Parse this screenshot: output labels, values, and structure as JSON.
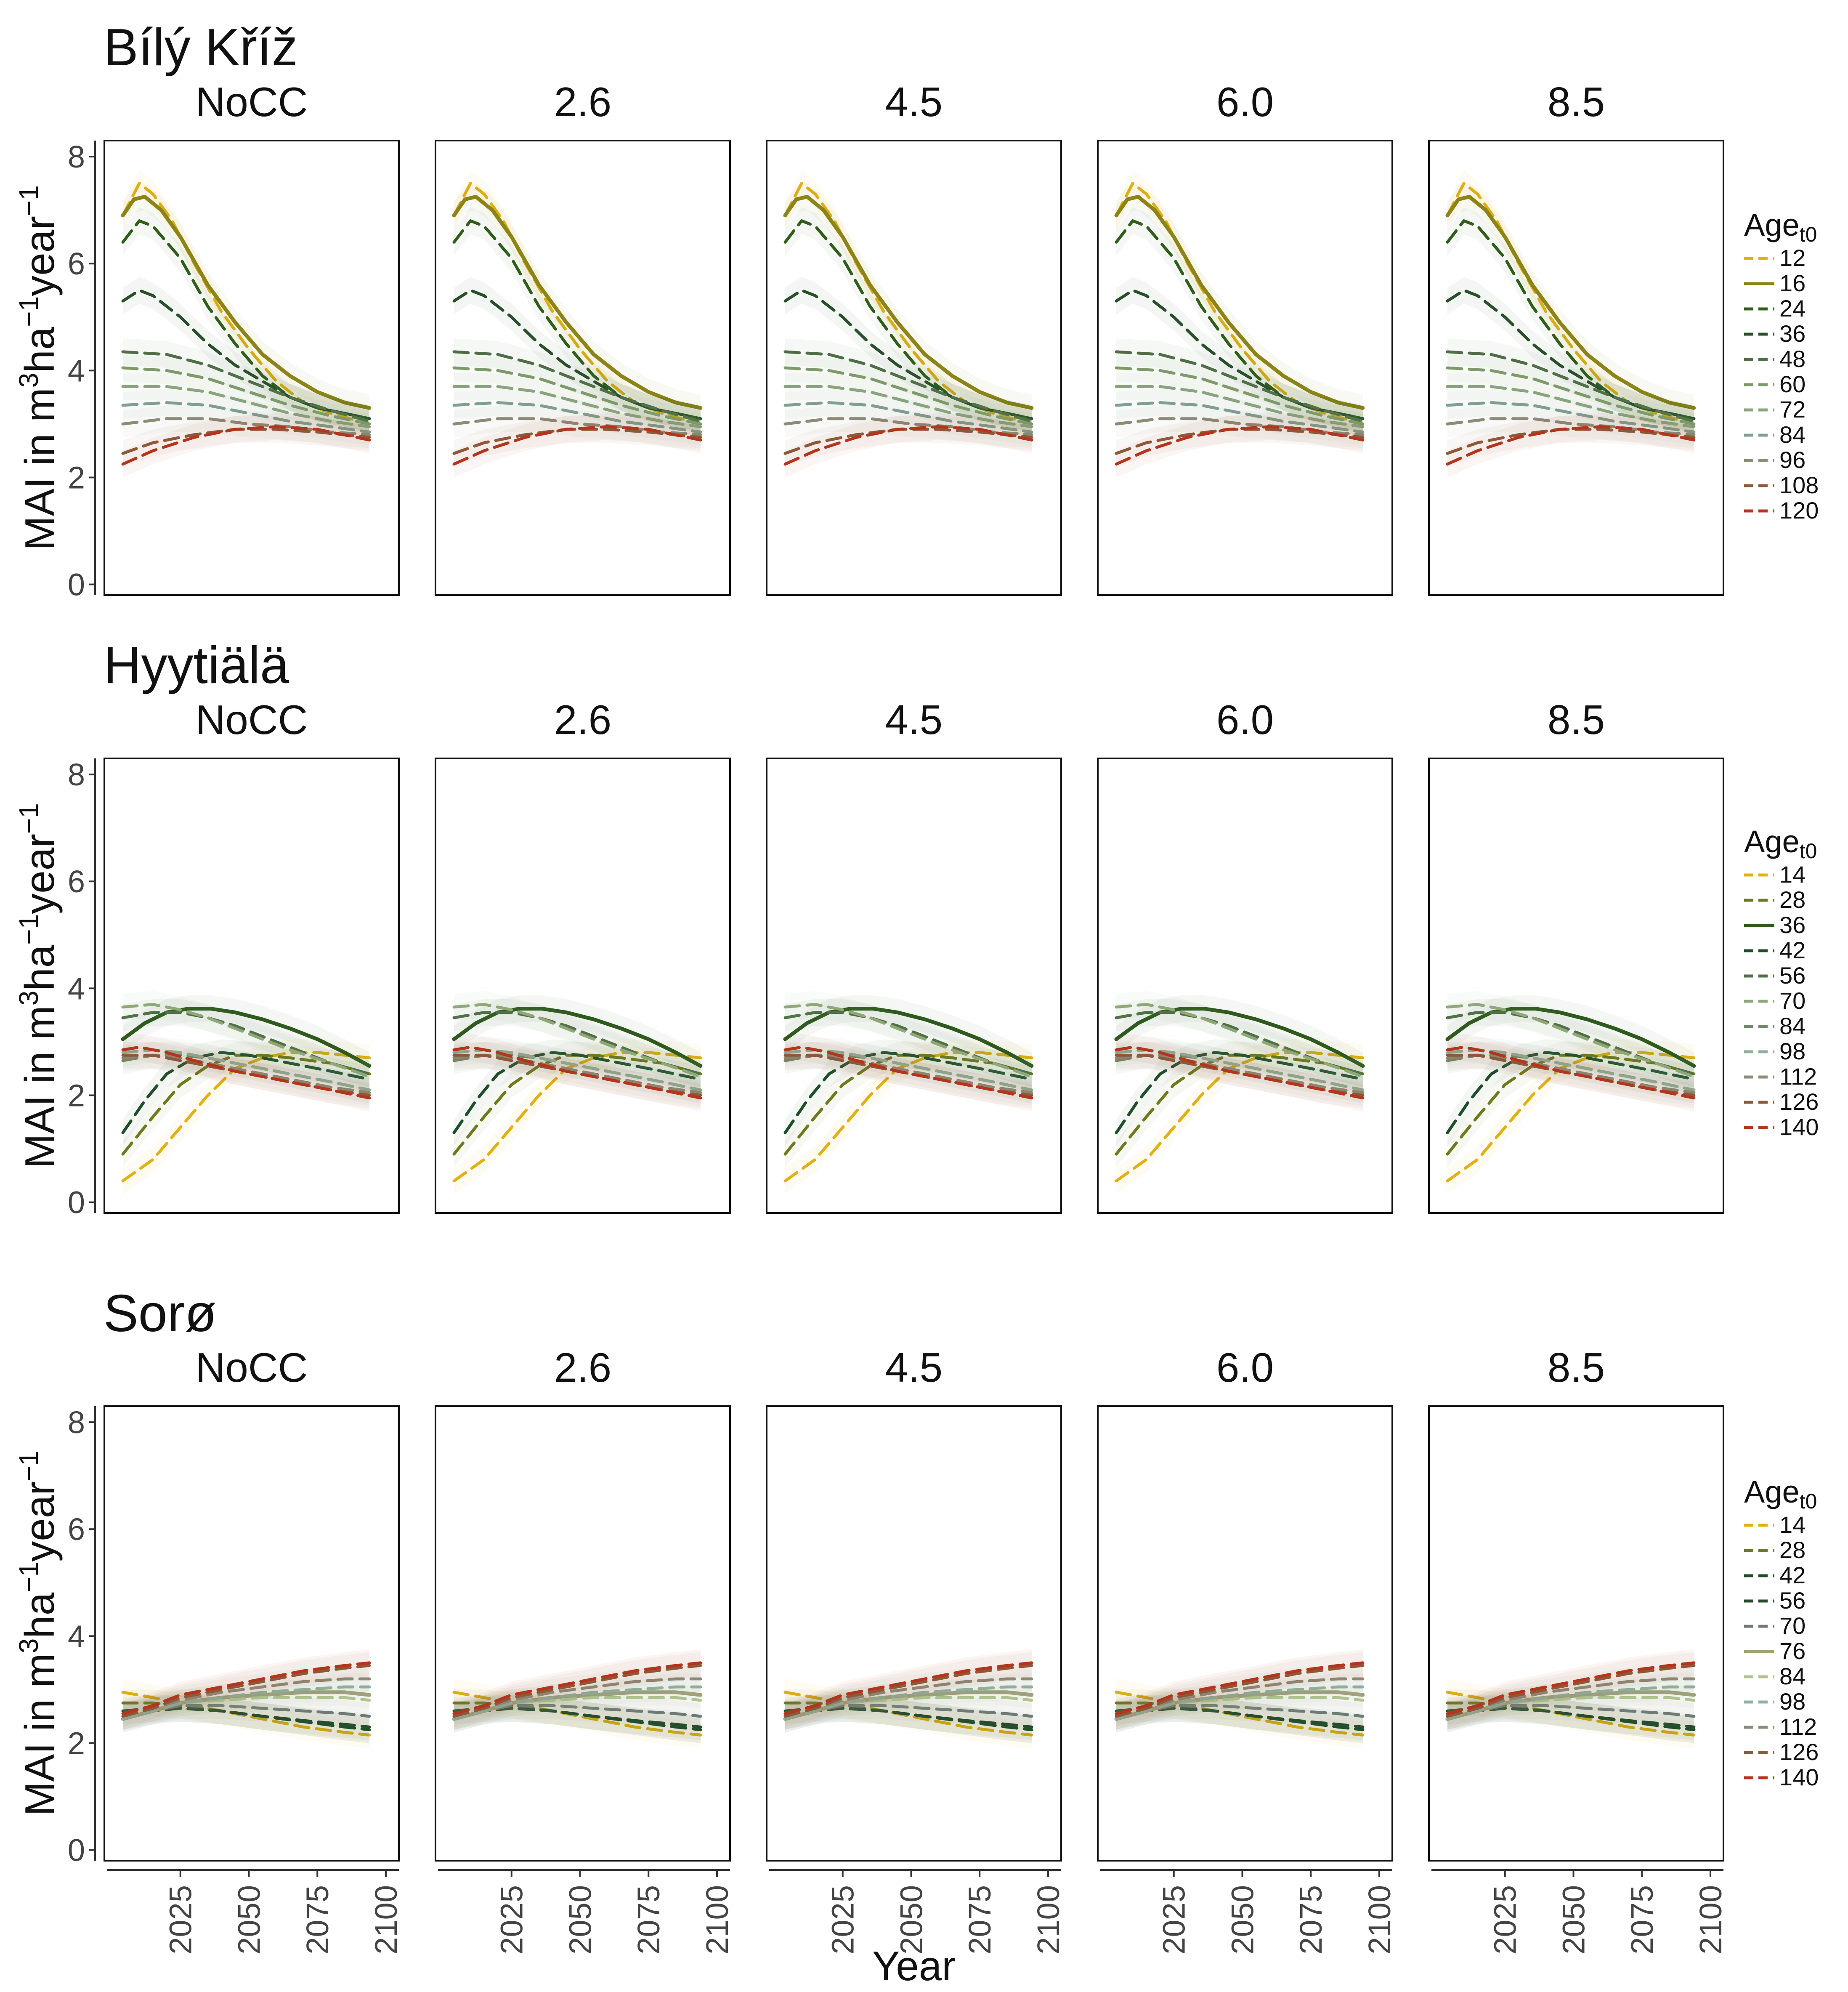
{
  "chart_data": {
    "type": "line",
    "x_axis_title": "Year",
    "y_axis_title": "MAI in m3ha-1year-1",
    "y_axis_title_parts": {
      "main": "MAI in m",
      "sup1": "3",
      "mid": "ha",
      "sup2": "−1",
      "tail": "year",
      "sup3": "−1"
    },
    "ylim": [
      -0.2,
      8.3
    ],
    "xlim": [
      2000,
      2102
    ],
    "y_ticks": [
      "0",
      "2",
      "4",
      "6",
      "8"
    ],
    "x_ticks": [
      "2025",
      "2050",
      "2075",
      "2100"
    ],
    "scenarios": [
      "NoCC",
      "2.6",
      "4.5",
      "6.0",
      "8.5"
    ],
    "legend_title_main": "Age",
    "legend_title_sub": "t0",
    "sites": [
      {
        "name": "Bílý Kříž",
        "ages": [
          "12",
          "16",
          "24",
          "36",
          "48",
          "60",
          "72",
          "84",
          "96",
          "108",
          "120"
        ],
        "colors": [
          "#e2b012",
          "#8c8418",
          "#2f5e1a",
          "#274f2a",
          "#4f6e46",
          "#7f9a6a",
          "#8aa47e",
          "#7f9f90",
          "#8e8a78",
          "#8c5a3c",
          "#b5341c"
        ],
        "solid_index": 1,
        "series": [
          {
            "age": "12",
            "x": [
              2004,
              2010,
              2015,
              2022,
              2030,
              2040,
              2050,
              2060,
              2070,
              2080,
              2094
            ],
            "y": [
              6.9,
              7.5,
              7.3,
              6.8,
              6.0,
              5.1,
              4.4,
              3.8,
              3.4,
              3.2,
              3.0
            ]
          },
          {
            "age": "16",
            "x": [
              2004,
              2008,
              2012,
              2018,
              2025,
              2035,
              2045,
              2055,
              2065,
              2075,
              2085,
              2094
            ],
            "y": [
              6.9,
              7.2,
              7.25,
              7.0,
              6.5,
              5.6,
              4.9,
              4.3,
              3.9,
              3.6,
              3.4,
              3.3
            ]
          },
          {
            "age": "24",
            "x": [
              2004,
              2010,
              2015,
              2025,
              2035,
              2045,
              2055,
              2065,
              2075,
              2085,
              2094
            ],
            "y": [
              6.4,
              6.8,
              6.7,
              6.1,
              5.2,
              4.5,
              3.9,
              3.5,
              3.3,
              3.2,
              3.1
            ]
          },
          {
            "age": "36",
            "x": [
              2004,
              2010,
              2015,
              2025,
              2035,
              2045,
              2055,
              2065,
              2075,
              2085,
              2094
            ],
            "y": [
              5.3,
              5.5,
              5.4,
              5.0,
              4.5,
              4.1,
              3.8,
              3.5,
              3.3,
              3.2,
              3.1
            ]
          },
          {
            "age": "48",
            "x": [
              2004,
              2020,
              2035,
              2050,
              2065,
              2080,
              2094
            ],
            "y": [
              4.35,
              4.3,
              4.1,
              3.8,
              3.5,
              3.25,
              3.05
            ]
          },
          {
            "age": "60",
            "x": [
              2004,
              2020,
              2035,
              2050,
              2065,
              2080,
              2094
            ],
            "y": [
              4.05,
              4.0,
              3.85,
              3.6,
              3.35,
              3.15,
              3.0
            ]
          },
          {
            "age": "72",
            "x": [
              2004,
              2020,
              2035,
              2050,
              2065,
              2080,
              2094
            ],
            "y": [
              3.7,
              3.7,
              3.6,
              3.4,
              3.2,
              3.05,
              2.95
            ]
          },
          {
            "age": "84",
            "x": [
              2004,
              2020,
              2035,
              2050,
              2065,
              2080,
              2094
            ],
            "y": [
              3.35,
              3.4,
              3.35,
              3.2,
              3.05,
              2.95,
              2.85
            ]
          },
          {
            "age": "96",
            "x": [
              2004,
              2020,
              2035,
              2050,
              2065,
              2080,
              2094
            ],
            "y": [
              3.0,
              3.1,
              3.1,
              3.0,
              2.95,
              2.85,
              2.8
            ]
          },
          {
            "age": "108",
            "x": [
              2004,
              2015,
              2030,
              2045,
              2060,
              2075,
              2094
            ],
            "y": [
              2.45,
              2.65,
              2.8,
              2.9,
              2.9,
              2.85,
              2.75
            ]
          },
          {
            "age": "120",
            "x": [
              2004,
              2015,
              2030,
              2045,
              2060,
              2075,
              2094
            ],
            "y": [
              2.25,
              2.5,
              2.75,
              2.9,
              2.95,
              2.9,
              2.7
            ]
          }
        ]
      },
      {
        "name": "Hyytiälä",
        "ages": [
          "14",
          "28",
          "36",
          "42",
          "56",
          "70",
          "84",
          "98",
          "112",
          "126",
          "140"
        ],
        "colors": [
          "#e2b012",
          "#6e7a1c",
          "#2f5a1e",
          "#1f4f2a",
          "#4f6e46",
          "#90a878",
          "#6f8a68",
          "#8fb098",
          "#8e8a78",
          "#8c5a3c",
          "#b5341c"
        ],
        "solid_index": 2,
        "series": [
          {
            "age": "14",
            "x": [
              2004,
              2015,
              2025,
              2035,
              2045,
              2055,
              2065,
              2075,
              2085,
              2094
            ],
            "y": [
              0.4,
              0.8,
              1.4,
              2.0,
              2.5,
              2.7,
              2.8,
              2.8,
              2.75,
              2.7
            ]
          },
          {
            "age": "28",
            "x": [
              2004,
              2015,
              2025,
              2035,
              2045,
              2055,
              2065,
              2080,
              2094
            ],
            "y": [
              0.9,
              1.6,
              2.2,
              2.55,
              2.75,
              2.75,
              2.7,
              2.6,
              2.4
            ]
          },
          {
            "age": "36",
            "x": [
              2004,
              2012,
              2020,
              2028,
              2036,
              2045,
              2055,
              2065,
              2075,
              2085,
              2094
            ],
            "y": [
              3.05,
              3.35,
              3.55,
              3.62,
              3.62,
              3.55,
              3.42,
              3.25,
              3.05,
              2.8,
              2.55
            ]
          },
          {
            "age": "42",
            "x": [
              2004,
              2012,
              2020,
              2030,
              2040,
              2050,
              2065,
              2080,
              2094
            ],
            "y": [
              1.3,
              1.9,
              2.4,
              2.7,
              2.8,
              2.75,
              2.6,
              2.45,
              2.3
            ]
          },
          {
            "age": "56",
            "x": [
              2004,
              2015,
              2025,
              2035,
              2045,
              2055,
              2065,
              2080,
              2094
            ],
            "y": [
              3.45,
              3.55,
              3.55,
              3.45,
              3.3,
              3.1,
              2.9,
              2.6,
              2.4
            ]
          },
          {
            "age": "70",
            "x": [
              2004,
              2015,
              2025,
              2035,
              2045,
              2055,
              2065,
              2080,
              2094
            ],
            "y": [
              3.65,
              3.7,
              3.6,
              3.45,
              3.25,
              3.05,
              2.85,
              2.6,
              2.35
            ]
          },
          {
            "age": "84",
            "x": [
              2004,
              2015,
              2025,
              2035,
              2050,
              2065,
              2080,
              2094
            ],
            "y": [
              2.65,
              2.75,
              2.75,
              2.7,
              2.55,
              2.4,
              2.25,
              2.1
            ]
          },
          {
            "age": "98",
            "x": [
              2004,
              2015,
              2025,
              2035,
              2050,
              2065,
              2080,
              2094
            ],
            "y": [
              2.8,
              2.85,
              2.8,
              2.7,
              2.55,
              2.4,
              2.25,
              2.1
            ]
          },
          {
            "age": "112",
            "x": [
              2004,
              2015,
              2025,
              2035,
              2050,
              2065,
              2080,
              2094
            ],
            "y": [
              2.7,
              2.75,
              2.7,
              2.6,
              2.45,
              2.3,
              2.15,
              2.05
            ]
          },
          {
            "age": "126",
            "x": [
              2004,
              2015,
              2025,
              2035,
              2050,
              2065,
              2080,
              2094
            ],
            "y": [
              2.75,
              2.75,
              2.65,
              2.55,
              2.4,
              2.25,
              2.1,
              2.0
            ]
          },
          {
            "age": "140",
            "x": [
              2004,
              2010,
              2020,
              2030,
              2045,
              2060,
              2075,
              2094
            ],
            "y": [
              2.85,
              2.9,
              2.8,
              2.65,
              2.45,
              2.3,
              2.15,
              1.95
            ]
          }
        ]
      },
      {
        "name": "Sorø",
        "ages": [
          "14",
          "28",
          "42",
          "56",
          "70",
          "76",
          "84",
          "98",
          "112",
          "126",
          "140"
        ],
        "colors": [
          "#e2b012",
          "#6e7a1c",
          "#1f4f2a",
          "#244a2c",
          "#6f7a74",
          "#a0a07a",
          "#b0c48c",
          "#8fb0a0",
          "#8e8a78",
          "#8c5a3c",
          "#b5341c"
        ],
        "solid_index": 5,
        "series": [
          {
            "age": "14",
            "x": [
              2004,
              2015,
              2025,
              2040,
              2055,
              2070,
              2085,
              2094
            ],
            "y": [
              2.95,
              2.85,
              2.75,
              2.6,
              2.45,
              2.3,
              2.2,
              2.15
            ]
          },
          {
            "age": "28",
            "x": [
              2004,
              2015,
              2025,
              2040,
              2055,
              2070,
              2085,
              2094
            ],
            "y": [
              2.75,
              2.75,
              2.7,
              2.6,
              2.5,
              2.4,
              2.3,
              2.25
            ]
          },
          {
            "age": "42",
            "x": [
              2004,
              2015,
              2025,
              2040,
              2055,
              2070,
              2085,
              2094
            ],
            "y": [
              2.6,
              2.65,
              2.65,
              2.6,
              2.5,
              2.4,
              2.3,
              2.25
            ]
          },
          {
            "age": "56",
            "x": [
              2004,
              2015,
              2025,
              2040,
              2055,
              2070,
              2085,
              2094
            ],
            "y": [
              2.5,
              2.6,
              2.65,
              2.6,
              2.5,
              2.42,
              2.35,
              2.3
            ]
          },
          {
            "age": "70",
            "x": [
              2004,
              2015,
              2025,
              2040,
              2055,
              2070,
              2085,
              2094
            ],
            "y": [
              2.45,
              2.6,
              2.7,
              2.7,
              2.65,
              2.6,
              2.55,
              2.5
            ]
          },
          {
            "age": "76",
            "x": [
              2004,
              2015,
              2025,
              2040,
              2055,
              2070,
              2085,
              2094
            ],
            "y": [
              2.45,
              2.6,
              2.75,
              2.85,
              2.9,
              2.95,
              2.95,
              2.9
            ]
          },
          {
            "age": "84",
            "x": [
              2004,
              2015,
              2025,
              2040,
              2055,
              2070,
              2085,
              2094
            ],
            "y": [
              2.5,
              2.65,
              2.75,
              2.8,
              2.85,
              2.85,
              2.85,
              2.8
            ]
          },
          {
            "age": "98",
            "x": [
              2004,
              2015,
              2025,
              2040,
              2055,
              2070,
              2085,
              2094
            ],
            "y": [
              2.45,
              2.6,
              2.75,
              2.85,
              2.95,
              3.0,
              3.05,
              3.05
            ]
          },
          {
            "age": "112",
            "x": [
              2004,
              2015,
              2025,
              2040,
              2055,
              2070,
              2085,
              2094
            ],
            "y": [
              2.5,
              2.65,
              2.8,
              2.95,
              3.05,
              3.15,
              3.2,
              3.2
            ]
          },
          {
            "age": "126",
            "x": [
              2004,
              2015,
              2025,
              2040,
              2055,
              2070,
              2085,
              2094
            ],
            "y": [
              2.5,
              2.65,
              2.85,
              3.0,
              3.15,
              3.3,
              3.4,
              3.45
            ]
          },
          {
            "age": "140",
            "x": [
              2004,
              2015,
              2025,
              2040,
              2055,
              2070,
              2085,
              2094
            ],
            "y": [
              2.55,
              2.7,
              2.9,
              3.05,
              3.2,
              3.35,
              3.45,
              3.5
            ]
          }
        ]
      }
    ]
  }
}
